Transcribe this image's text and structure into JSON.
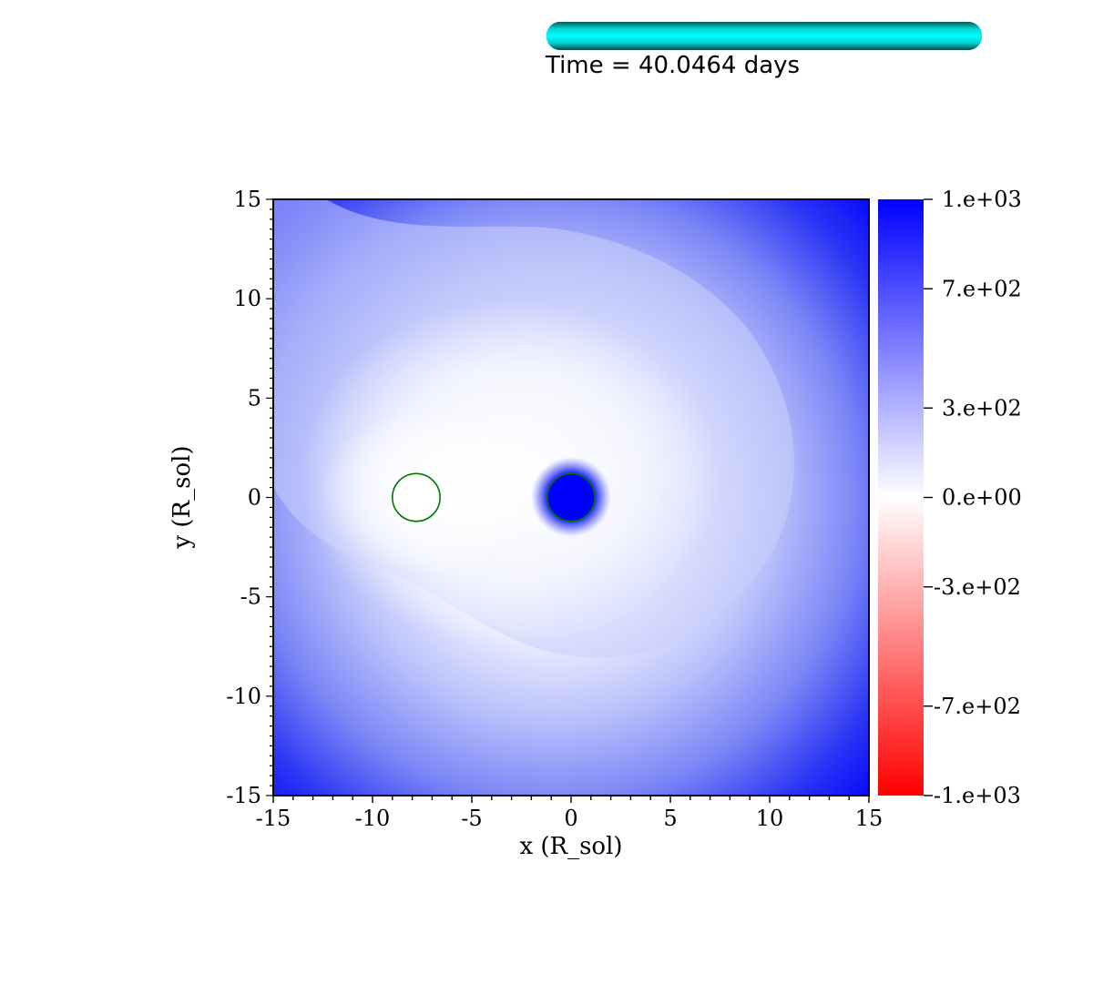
{
  "header": {
    "time_label": "Time = 40.0464 days",
    "progress_fraction": 1.0,
    "progress_color": "#00e5e5"
  },
  "chart_data": {
    "type": "heatmap",
    "title": "",
    "xlabel": "x (R_sol)",
    "ylabel": "y (R_sol)",
    "xlim": [
      -15,
      15
    ],
    "ylim": [
      -15,
      15
    ],
    "xticks": [
      -15,
      -10,
      -5,
      0,
      5,
      10,
      15
    ],
    "yticks": [
      -15,
      -10,
      -5,
      0,
      5,
      10,
      15
    ],
    "xtick_labels": [
      "-15",
      "-10",
      "-5",
      "0",
      "5",
      "10",
      "15"
    ],
    "ytick_labels": [
      "-15",
      "-10",
      "-5",
      "0",
      "5",
      "10",
      "15"
    ],
    "colorbar": {
      "min": -1000,
      "max": 1000,
      "ticks": [
        1000,
        700,
        300,
        0,
        -300,
        -700,
        -1000
      ],
      "tick_labels": [
        "1.e+03",
        "7.e+02",
        "3.e+02",
        "0.e+00",
        "-3.e+02",
        "-7.e+02",
        "-1.e+03"
      ],
      "colors": {
        "max": "#0000ff",
        "mid": "#ffffff",
        "min": "#ff0000"
      }
    },
    "markers": [
      {
        "name": "companion",
        "x": -7.8,
        "y": 0.0,
        "radius": 1.2,
        "fill": "#ffffff",
        "stroke": "#007700"
      },
      {
        "name": "core",
        "x": 0.0,
        "y": 0.0,
        "radius": 1.2,
        "fill": "#0000ff",
        "stroke": "#007700"
      }
    ]
  }
}
